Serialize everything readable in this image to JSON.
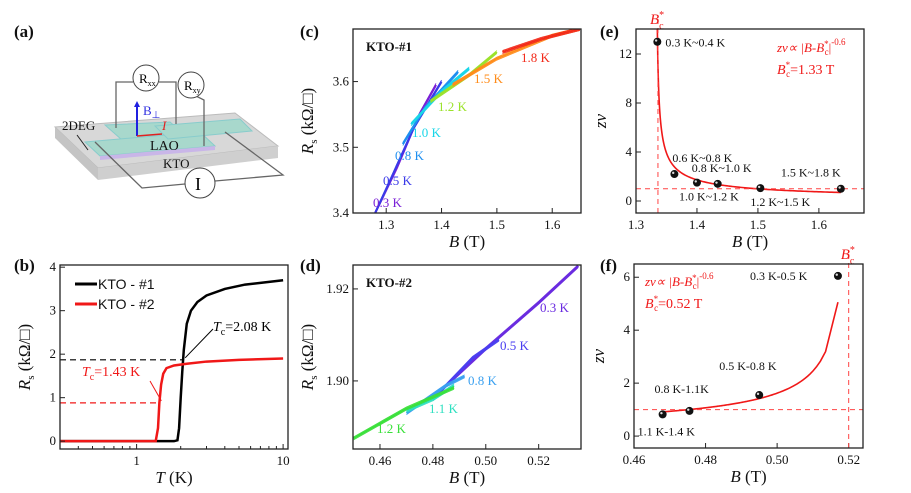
{
  "panels": {
    "a": {
      "label": "(a)",
      "rxx": "R",
      "rxx_sub": "xx",
      "rxy": "R",
      "rxy_sub": "xy",
      "b_perp": "B",
      "b_perp_sym": "⊥",
      "current": "I",
      "two_deg": "2DEG",
      "lao": "LAO",
      "kto": "KTO",
      "source": "I"
    },
    "b": {
      "label": "(b)"
    },
    "c": {
      "label": "(c)",
      "sample": "KTO-#1"
    },
    "d": {
      "label": "(d)",
      "sample": "KTO-#2"
    },
    "e": {
      "label": "(e)"
    },
    "f": {
      "label": "(f)"
    }
  },
  "chart_data": [
    {
      "id": "b",
      "type": "line",
      "xlabel": {
        "main": "T",
        "rest": " (K)"
      },
      "ylabel": {
        "main": "R",
        "sub": "s",
        "rest": " (kΩ/□)"
      },
      "xscale": "log",
      "xlim": [
        0.3,
        10.8
      ],
      "ylim": [
        -0.18,
        4.05
      ],
      "xticks": [
        {
          "v": 1,
          "t": "1"
        },
        {
          "v": 10,
          "t": "10"
        }
      ],
      "yticks": [
        {
          "v": 0,
          "t": "0"
        },
        {
          "v": 1,
          "t": "1"
        },
        {
          "v": 2,
          "t": "2"
        },
        {
          "v": 3,
          "t": "3"
        },
        {
          "v": 4,
          "t": "4"
        }
      ],
      "legend_position": "top-left",
      "series": [
        {
          "name": "KTO - #1",
          "color": "#000000",
          "x": [
            0.3,
            1.0,
            1.8,
            1.9,
            1.95,
            2.0,
            2.05,
            2.1,
            2.2,
            2.35,
            2.6,
            3.0,
            4.0,
            5.5,
            7.5,
            10
          ],
          "y": [
            0,
            0,
            0,
            0.02,
            0.3,
            1.0,
            1.6,
            2.1,
            2.7,
            3.0,
            3.2,
            3.35,
            3.5,
            3.6,
            3.65,
            3.7
          ]
        },
        {
          "name": "KTO - #2",
          "color": "#f01818",
          "x": [
            0.3,
            1.0,
            1.35,
            1.4,
            1.43,
            1.47,
            1.52,
            1.6,
            1.8,
            2.2,
            3.0,
            5.0,
            10
          ],
          "y": [
            0,
            0,
            0,
            0.3,
            0.88,
            1.3,
            1.55,
            1.68,
            1.74,
            1.78,
            1.83,
            1.87,
            1.9
          ]
        }
      ],
      "annotations": [
        {
          "t_main": "T",
          "t_sub": "c",
          "t_rest": "=2.08 K",
          "color": "#000000",
          "tc": 2.08,
          "level": 1.87
        },
        {
          "t_main": "T",
          "t_sub": "c",
          "t_rest": "=1.43 K",
          "color": "#f01818",
          "tc": 1.43,
          "level": 0.88
        }
      ]
    },
    {
      "id": "c",
      "type": "line",
      "xlabel": {
        "main": "B",
        "rest": " (T)"
      },
      "ylabel": {
        "main": "R",
        "sub": "s",
        "rest": " (kΩ/□)"
      },
      "xlim": [
        1.24,
        1.652
      ],
      "ylim": [
        3.4,
        3.68
      ],
      "xticks": [
        {
          "v": 1.3,
          "t": "1.3"
        },
        {
          "v": 1.4,
          "t": "1.4"
        },
        {
          "v": 1.5,
          "t": "1.5"
        },
        {
          "v": 1.6,
          "t": "1.6"
        }
      ],
      "yticks": [
        {
          "v": 3.4,
          "t": "3.4"
        },
        {
          "v": 3.5,
          "t": "3.5"
        },
        {
          "v": 3.6,
          "t": "3.6"
        }
      ],
      "series": [
        {
          "name": "0.3 K",
          "color": "#7a1fd6",
          "x": [
            1.28,
            1.32,
            1.36,
            1.39
          ],
          "y": [
            3.4,
            3.47,
            3.55,
            3.595
          ]
        },
        {
          "name": "0.5 K",
          "color": "#3a3ae8",
          "x": [
            1.28,
            1.31,
            1.35,
            1.4
          ],
          "y": [
            3.4,
            3.455,
            3.53,
            3.6
          ]
        },
        {
          "name": "0.8 K",
          "color": "#1e8ff0",
          "x": [
            1.33,
            1.37,
            1.43
          ],
          "y": [
            3.505,
            3.56,
            3.615
          ]
        },
        {
          "name": "1.0 K",
          "color": "#19d6e8",
          "x": [
            1.345,
            1.4,
            1.45
          ],
          "y": [
            3.535,
            3.585,
            3.62
          ]
        },
        {
          "name": "1.2 K",
          "color": "#9be22a",
          "x": [
            1.38,
            1.45,
            1.5
          ],
          "y": [
            3.57,
            3.61,
            3.645
          ]
        },
        {
          "name": "1.5 K",
          "color": "#ff8c1a",
          "x": [
            1.42,
            1.5,
            1.6,
            1.65
          ],
          "y": [
            3.595,
            3.635,
            3.67,
            3.68
          ]
        },
        {
          "name": "1.8 K",
          "color": "#f22a1a",
          "x": [
            1.51,
            1.58,
            1.65
          ],
          "y": [
            3.645,
            3.665,
            3.68
          ]
        }
      ]
    },
    {
      "id": "d",
      "type": "line",
      "xlabel": {
        "main": "B",
        "rest": " (T)"
      },
      "ylabel": {
        "main": "R",
        "sub": "s",
        "rest": " (kΩ/□)"
      },
      "xlim": [
        0.4498,
        0.536
      ],
      "ylim": [
        1.8852,
        1.9252
      ],
      "xticks": [
        {
          "v": 0.46,
          "t": "0.46"
        },
        {
          "v": 0.48,
          "t": "0.48"
        },
        {
          "v": 0.5,
          "t": "0.50"
        },
        {
          "v": 0.52,
          "t": "0.52"
        }
      ],
      "yticks": [
        {
          "v": 1.9,
          "t": "1.90"
        },
        {
          "v": 1.92,
          "t": "1.92"
        }
      ],
      "series": [
        {
          "name": "0.3 K",
          "color": "#6a2be0",
          "x": [
            0.485,
            0.5,
            0.52,
            0.535
          ],
          "y": [
            1.899,
            1.907,
            1.917,
            1.925
          ]
        },
        {
          "name": "0.5 K",
          "color": "#4a3ef0",
          "x": [
            0.48,
            0.495,
            0.505
          ],
          "y": [
            1.896,
            1.905,
            1.909
          ]
        },
        {
          "name": "0.8 K",
          "color": "#3aa0f0",
          "x": [
            0.47,
            0.485,
            0.492
          ],
          "y": [
            1.893,
            1.899,
            1.901
          ]
        },
        {
          "name": "1.1 K",
          "color": "#2ee0c0",
          "x": [
            0.47,
            0.48,
            0.488
          ],
          "y": [
            1.8935,
            1.896,
            1.899
          ]
        },
        {
          "name": "1.2 K",
          "color": "#3ae03a",
          "x": [
            0.45,
            0.47,
            0.488
          ],
          "y": [
            1.8875,
            1.894,
            1.8985
          ]
        }
      ]
    },
    {
      "id": "e",
      "type": "scatter",
      "xlabel": {
        "main": "B",
        "rest": " (T)"
      },
      "ylabel": {
        "main": "zv",
        "rest": ""
      },
      "xlim": [
        1.3,
        1.674
      ],
      "ylim": [
        -0.98,
        14.04
      ],
      "xticks": [
        {
          "v": 1.3,
          "t": "1.3"
        },
        {
          "v": 1.4,
          "t": "1.4"
        },
        {
          "v": 1.5,
          "t": "1.5"
        },
        {
          "v": 1.6,
          "t": "1.6"
        }
      ],
      "yticks": [
        {
          "v": 0,
          "t": "0"
        },
        {
          "v": 4,
          "t": "4"
        },
        {
          "v": 8,
          "t": "8"
        },
        {
          "v": 12,
          "t": "12"
        }
      ],
      "points": [
        {
          "x": 1.335,
          "y": 13.0,
          "label": "0.3 K~0.4 K"
        },
        {
          "x": 1.363,
          "y": 2.2,
          "label": "0.6 K~0.8 K"
        },
        {
          "x": 1.4,
          "y": 1.5,
          "label": "1.0 K~1.2 K"
        },
        {
          "x": 1.434,
          "y": 1.4,
          "label": "0.8 K~1.0 K"
        },
        {
          "x": 1.504,
          "y": 1.05,
          "label": "1.2 K~1.5 K"
        },
        {
          "x": 1.636,
          "y": 1.0,
          "label": "1.5 K~1.8 K"
        }
      ],
      "fit": {
        "bc": 1.333,
        "exponent": -0.6,
        "amplitude": 0.34,
        "x_from": 1.3343,
        "x_to": 1.636,
        "color": "#f01818"
      },
      "ref_lines": {
        "x": 1.336,
        "y": 1
      },
      "bc_marker": {
        "main": "B",
        "sup": "*",
        "sub": "c"
      },
      "formula": {
        "a": "zv∝ |B-B",
        "sup": "*",
        "sub": "c",
        "b": "|",
        "exp": "-0.6"
      },
      "bc_value": {
        "main": "B",
        "sup": "*",
        "sub": "c",
        "rest": "=1.33 T"
      }
    },
    {
      "id": "f",
      "type": "scatter",
      "xlabel": {
        "main": "B",
        "rest": " (T)"
      },
      "ylabel": {
        "main": "zv",
        "rest": ""
      },
      "xlim": [
        0.46,
        0.524
      ],
      "ylim": [
        -0.45,
        6.5
      ],
      "xticks": [
        {
          "v": 0.46,
          "t": "0.46"
        },
        {
          "v": 0.48,
          "t": "0.48"
        },
        {
          "v": 0.5,
          "t": "0.50"
        },
        {
          "v": 0.52,
          "t": "0.52"
        }
      ],
      "yticks": [
        {
          "v": 0,
          "t": "0"
        },
        {
          "v": 2,
          "t": "2"
        },
        {
          "v": 4,
          "t": "4"
        },
        {
          "v": 6,
          "t": "6"
        }
      ],
      "points": [
        {
          "x": 0.468,
          "y": 0.82,
          "label": "1.1 K-1.4 K"
        },
        {
          "x": 0.4755,
          "y": 0.95,
          "label": "0.8 K-1.1K"
        },
        {
          "x": 0.495,
          "y": 1.55,
          "label": "0.5 K-0.8 K"
        },
        {
          "x": 0.517,
          "y": 6.05,
          "label": "0.3 K-0.5 K"
        }
      ],
      "fit": {
        "bc": 0.52,
        "exponent": -0.6,
        "amplitude": 0.155,
        "x_from": 0.468,
        "x_to": 0.517,
        "color": "#f01818",
        "mirror": true
      },
      "ref_lines": {
        "x": 0.52,
        "y": 1
      },
      "bc_marker": {
        "main": "B",
        "sup": "*",
        "sub": "c"
      },
      "formula": {
        "a": "zv∝ |B-B",
        "sup": "*",
        "sub": "c",
        "b": "|",
        "exp": "-0.6"
      },
      "bc_value": {
        "main": "B",
        "sup": "*",
        "sub": "c",
        "rest": "=0.52 T"
      }
    }
  ]
}
